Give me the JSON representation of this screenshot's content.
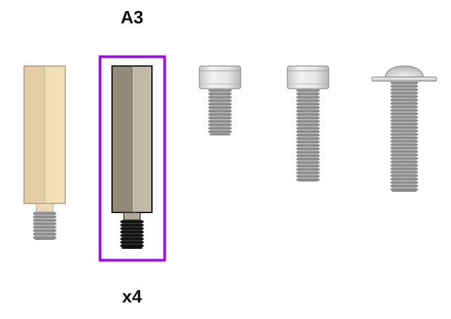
{
  "part_code": "A3",
  "quantity_label": "x4",
  "selected_index": 1,
  "colors": {
    "selection_border": "#9b10e8",
    "brass_left": "#e2cda6",
    "brass_right": "#f3dfb6",
    "brass_edge": "#a89878",
    "steel_left": "#948a7a",
    "steel_right": "#c2b9a6",
    "steel_edge": "#1a1a1a",
    "thread_gray": "#8c8c8c",
    "thread_black": "#111111",
    "screw_head": "#e1e1e1"
  },
  "parts": [
    {
      "name": "brass-standoff"
    },
    {
      "name": "steel-standoff"
    },
    {
      "name": "short-socket-head-screw"
    },
    {
      "name": "medium-socket-head-screw"
    },
    {
      "name": "button-head-screw"
    }
  ]
}
